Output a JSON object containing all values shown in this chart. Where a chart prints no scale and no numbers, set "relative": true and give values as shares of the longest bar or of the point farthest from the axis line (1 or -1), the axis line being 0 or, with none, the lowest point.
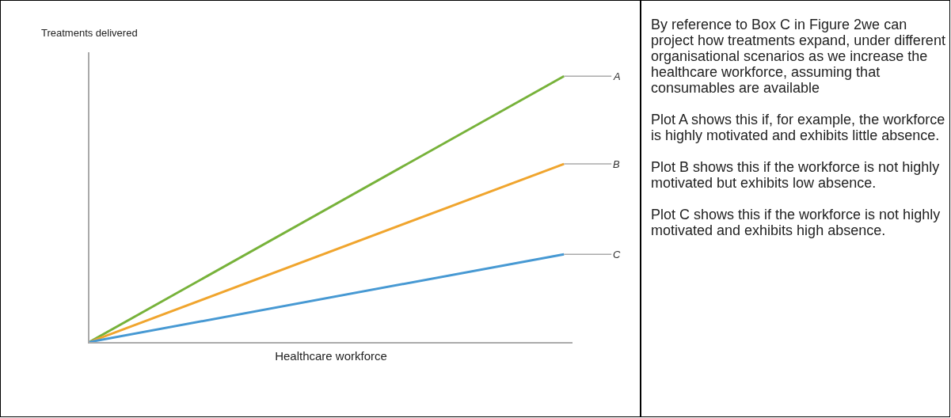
{
  "chart_data": {
    "type": "line",
    "relative": true,
    "xlabel": "Healthcare workforce",
    "ylabel": "Treatments delivered",
    "categories": [
      null,
      null
    ],
    "series": [
      {
        "name": "A",
        "color": "#77b23a",
        "values": [
          0,
          1
        ]
      },
      {
        "name": "B",
        "color": "#f0a52e",
        "values": [
          0,
          0.67
        ]
      },
      {
        "name": "C",
        "color": "#4799d3",
        "values": [
          0,
          0.33
        ]
      }
    ],
    "legend": false,
    "marker": "none",
    "line_style": "solid",
    "annotations": [
      "By reference to Box C in Figure 2we can project how treatments expand, under different organisational scenarios as we increase the healthcare workforce, assuming that consumables are available",
      "Plot A shows this if, for example, the workforce is highly motivated and exhibits little absence.",
      "Plot B shows this if  the workforce is not highly motivated but exhibits low absence.",
      "Plot C shows this  if  the workforce is not highly motivated and exhibits high absence."
    ]
  }
}
